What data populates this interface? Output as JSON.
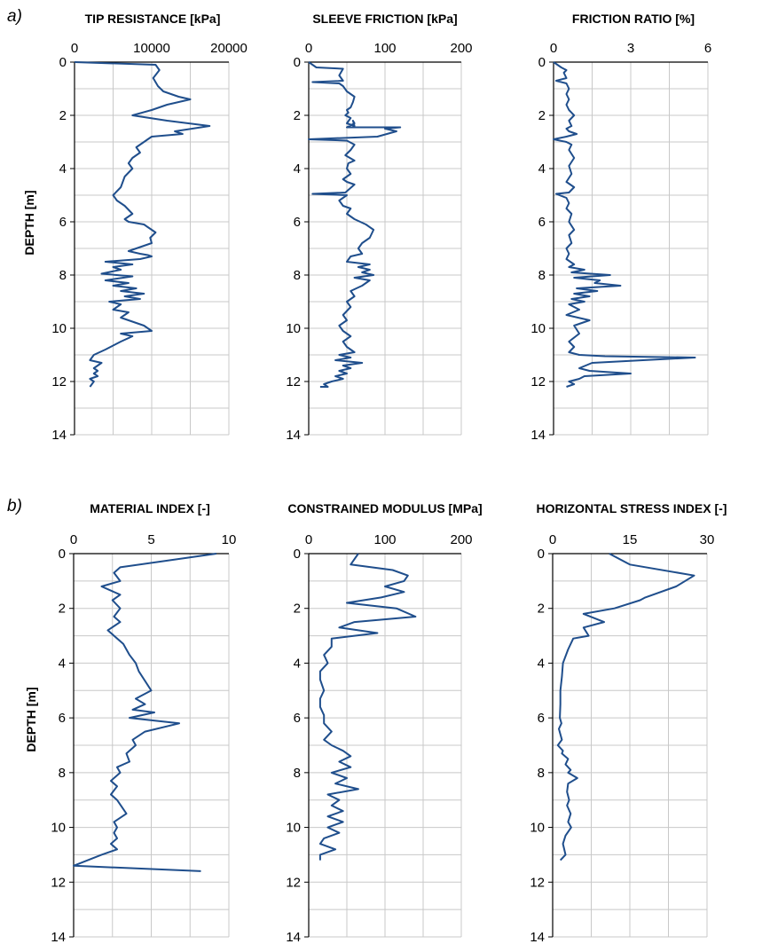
{
  "panel_labels": [
    "a)",
    "b)"
  ],
  "y_axis_label": "DEPTH [m]",
  "colors": {
    "line": "#1f4e8c",
    "grid": "#c8c8c8",
    "axis": "#000000"
  },
  "chart_data": [
    {
      "type": "line",
      "group": "a)",
      "title": "TIP RESISTANCE [kPa]",
      "xlim": [
        0,
        20000
      ],
      "xticks": [
        0,
        10000,
        20000
      ],
      "xticklabels": [
        "0",
        "10000",
        "20000"
      ],
      "ylim": [
        0,
        14
      ],
      "yticks": [
        0,
        2,
        4,
        6,
        8,
        10,
        12,
        14
      ],
      "y_inverted": true,
      "grid": true,
      "x": [
        0,
        10500,
        11000,
        10200,
        10800,
        11500,
        13500,
        15000,
        12000,
        10000,
        7500,
        12000,
        17500,
        13000,
        14000,
        10000,
        9500,
        9000,
        8000,
        8500,
        7500,
        7000,
        7500,
        6500,
        6000,
        5000,
        5500,
        6500,
        7500,
        6500,
        7000,
        9000,
        9500,
        10500,
        9800,
        10000,
        9000,
        8000,
        7000,
        8500,
        9500,
        10000,
        8500,
        4000,
        7500,
        5000,
        6000,
        3500,
        7500,
        4000,
        7000,
        5000,
        8000,
        6000,
        9000,
        6500,
        8500,
        4500,
        6000,
        5000,
        7000,
        6000,
        8000,
        9000,
        10000,
        6000,
        7500,
        6000,
        4000,
        2500,
        2000,
        3500,
        2500,
        3000,
        2500,
        3000,
        2000,
        2500,
        2000
      ],
      "y": [
        0,
        0.1,
        0.3,
        0.6,
        0.9,
        1.1,
        1.3,
        1.4,
        1.6,
        1.8,
        2.0,
        2.2,
        2.4,
        2.6,
        2.7,
        2.8,
        2.9,
        3.0,
        3.2,
        3.4,
        3.6,
        3.8,
        4.0,
        4.3,
        4.7,
        5.0,
        5.2,
        5.4,
        5.7,
        5.9,
        6.0,
        6.1,
        6.2,
        6.4,
        6.6,
        6.8,
        6.9,
        7.0,
        7.1,
        7.2,
        7.25,
        7.3,
        7.4,
        7.5,
        7.6,
        7.7,
        7.8,
        7.95,
        8.05,
        8.2,
        8.3,
        8.4,
        8.5,
        8.6,
        8.7,
        8.8,
        8.9,
        9.0,
        9.1,
        9.3,
        9.4,
        9.6,
        9.8,
        9.9,
        10.1,
        10.2,
        10.3,
        10.5,
        10.8,
        11.0,
        11.2,
        11.3,
        11.5,
        11.6,
        11.7,
        11.8,
        11.9,
        12.0,
        12.2
      ]
    },
    {
      "type": "line",
      "group": "a)",
      "title": "SLEEVE FRICTION [kPa]",
      "xlim": [
        0,
        200
      ],
      "xticks": [
        0,
        100,
        200
      ],
      "xticklabels": [
        "0",
        "100",
        "200"
      ],
      "ylim": [
        0,
        14
      ],
      "yticks": [
        0,
        2,
        4,
        6,
        8,
        10,
        12,
        14
      ],
      "y_inverted": true,
      "grid": true,
      "x": [
        0,
        10,
        45,
        40,
        45,
        5,
        40,
        45,
        50,
        55,
        60,
        58,
        55,
        50,
        52,
        48,
        55,
        50,
        60,
        58,
        60,
        50,
        120,
        100,
        115,
        90,
        0,
        50,
        60,
        55,
        48,
        60,
        52,
        50,
        55,
        45,
        50,
        60,
        48,
        5,
        50,
        40,
        45,
        55,
        50,
        60,
        75,
        85,
        80,
        70,
        65,
        70,
        55,
        50,
        80,
        65,
        80,
        70,
        85,
        60,
        80,
        70,
        55,
        60,
        50,
        55,
        45,
        50,
        40,
        45,
        55,
        45,
        50,
        60,
        40,
        55,
        35,
        70,
        45,
        55,
        40,
        50,
        35,
        45,
        30,
        20,
        25,
        15
      ],
      "y": [
        0,
        0.2,
        0.25,
        0.5,
        0.7,
        0.75,
        0.8,
        0.9,
        1.1,
        1.2,
        1.3,
        1.5,
        1.7,
        1.8,
        1.9,
        2.0,
        2.1,
        2.3,
        2.4,
        2.2,
        2.3,
        2.45,
        2.45,
        2.5,
        2.6,
        2.8,
        2.9,
        2.95,
        3.1,
        3.3,
        3.5,
        3.7,
        3.8,
        4.0,
        4.2,
        4.4,
        4.5,
        4.6,
        4.9,
        4.95,
        5.0,
        5.2,
        5.4,
        5.5,
        5.7,
        5.9,
        6.1,
        6.3,
        6.6,
        6.8,
        7.0,
        7.2,
        7.3,
        7.5,
        7.6,
        7.7,
        7.8,
        7.9,
        8.0,
        8.1,
        8.2,
        8.4,
        8.6,
        8.8,
        9.0,
        9.2,
        9.5,
        9.7,
        9.9,
        10.1,
        10.3,
        10.5,
        10.7,
        10.9,
        11.0,
        11.1,
        11.2,
        11.3,
        11.4,
        11.5,
        11.6,
        11.7,
        11.8,
        11.9,
        12.0,
        12.1,
        12.2,
        12.2
      ]
    },
    {
      "type": "line",
      "group": "a)",
      "title": "FRICTION RATIO [%]",
      "xlim": [
        0,
        6
      ],
      "xticks": [
        0,
        3,
        6
      ],
      "xticklabels": [
        "0",
        "3",
        "6"
      ],
      "ylim": [
        0,
        14
      ],
      "yticks": [
        0,
        2,
        4,
        6,
        8,
        10,
        12,
        14
      ],
      "y_inverted": true,
      "grid": true,
      "x": [
        0,
        0.3,
        0.5,
        0.4,
        0.5,
        0.1,
        0.5,
        0.6,
        0.5,
        0.6,
        0.5,
        0.6,
        0.8,
        0.6,
        0.7,
        0.5,
        0.6,
        0.9,
        0.5,
        0.0,
        0.5,
        0.7,
        0.6,
        0.8,
        0.6,
        0.7,
        0.5,
        0.8,
        0.6,
        0.1,
        0.5,
        0.6,
        0.5,
        0.7,
        0.6,
        0.8,
        0.6,
        0.7,
        0.5,
        0.6,
        0.5,
        0.8,
        0.6,
        1.2,
        0.7,
        2.2,
        0.8,
        1.8,
        1.6,
        2.6,
        0.9,
        1.7,
        0.8,
        1.4,
        0.7,
        1.2,
        0.6,
        1.0,
        0.5,
        1.4,
        0.8,
        1.0,
        0.6,
        0.8,
        0.6,
        1.0,
        2.0,
        5.5,
        1.5,
        1.0,
        1.4,
        3.0,
        1.2,
        1.0,
        0.6,
        0.8,
        0.5
      ],
      "y": [
        0,
        0.2,
        0.3,
        0.4,
        0.6,
        0.7,
        0.8,
        1.0,
        1.2,
        1.4,
        1.6,
        1.8,
        2.0,
        2.2,
        2.4,
        2.5,
        2.6,
        2.7,
        2.8,
        2.9,
        3.0,
        3.1,
        3.3,
        3.6,
        3.9,
        4.2,
        4.5,
        4.7,
        4.9,
        4.95,
        5.1,
        5.3,
        5.5,
        5.7,
        6.0,
        6.3,
        6.5,
        6.8,
        7.0,
        7.2,
        7.4,
        7.6,
        7.7,
        7.8,
        7.9,
        8.0,
        8.1,
        8.2,
        8.3,
        8.4,
        8.5,
        8.6,
        8.7,
        8.8,
        8.9,
        9.0,
        9.1,
        9.3,
        9.5,
        9.7,
        9.9,
        10.2,
        10.5,
        10.7,
        10.9,
        11.0,
        11.05,
        11.1,
        11.3,
        11.5,
        11.6,
        11.7,
        11.8,
        11.9,
        12.0,
        12.1,
        12.2
      ]
    },
    {
      "type": "line",
      "group": "b)",
      "title": "MATERIAL INDEX [-]",
      "xlim": [
        0,
        10
      ],
      "xticks": [
        0,
        5,
        10
      ],
      "xticklabels": [
        "0",
        "5",
        "10"
      ],
      "ylim": [
        0,
        14
      ],
      "yticks": [
        0,
        2,
        4,
        6,
        8,
        10,
        12,
        14
      ],
      "y_inverted": true,
      "grid": true,
      "x": [
        9.2,
        3.0,
        2.6,
        3.0,
        1.8,
        3.0,
        2.5,
        3.0,
        2.6,
        3.0,
        2.2,
        3.2,
        3.6,
        4.0,
        4.2,
        5.0,
        4.0,
        4.6,
        3.8,
        5.2,
        3.6,
        6.8,
        4.6,
        3.8,
        4.0,
        3.4,
        3.6,
        2.8,
        3.0,
        2.4,
        2.8,
        2.4,
        2.8,
        3.4,
        2.6,
        2.8,
        2.6,
        2.8,
        2.4,
        2.8,
        1.8,
        0.0,
        8.2
      ],
      "y": [
        0,
        0.5,
        0.7,
        1.0,
        1.2,
        1.5,
        1.7,
        2.0,
        2.3,
        2.5,
        2.8,
        3.3,
        3.7,
        4.0,
        4.3,
        5.0,
        5.3,
        5.5,
        5.7,
        5.8,
        6.0,
        6.2,
        6.5,
        6.8,
        7.0,
        7.3,
        7.6,
        7.8,
        8.0,
        8.3,
        8.5,
        8.8,
        9.0,
        9.5,
        9.8,
        10.0,
        10.2,
        10.4,
        10.6,
        10.8,
        11.0,
        11.4,
        11.6
      ]
    },
    {
      "type": "line",
      "group": "b)",
      "title": "CONSTRAINED MODULUS [MPa]",
      "xlim": [
        0,
        200
      ],
      "xticks": [
        0,
        100,
        200
      ],
      "xticklabels": [
        "0",
        "100",
        "200"
      ],
      "ylim": [
        0,
        14
      ],
      "yticks": [
        0,
        2,
        4,
        6,
        8,
        10,
        12,
        14
      ],
      "y_inverted": true,
      "grid": true,
      "x": [
        65,
        55,
        110,
        130,
        125,
        100,
        125,
        95,
        50,
        115,
        140,
        60,
        40,
        90,
        30,
        30,
        20,
        25,
        15,
        15,
        20,
        15,
        15,
        20,
        20,
        30,
        20,
        30,
        45,
        55,
        40,
        55,
        30,
        50,
        35,
        65,
        25,
        40,
        30,
        45,
        25,
        45,
        25,
        40,
        20,
        15,
        35,
        15,
        15
      ],
      "y": [
        0,
        0.4,
        0.6,
        0.8,
        1.0,
        1.2,
        1.4,
        1.6,
        1.8,
        2.0,
        2.3,
        2.5,
        2.7,
        2.9,
        3.1,
        3.4,
        3.7,
        4.0,
        4.3,
        4.6,
        5.0,
        5.3,
        5.6,
        5.9,
        6.2,
        6.5,
        6.8,
        7.0,
        7.2,
        7.4,
        7.6,
        7.8,
        8.0,
        8.2,
        8.4,
        8.6,
        8.8,
        9.0,
        9.2,
        9.4,
        9.6,
        9.8,
        10.0,
        10.2,
        10.4,
        10.6,
        10.8,
        11.0,
        11.2
      ]
    },
    {
      "type": "line",
      "group": "b)",
      "title": "HORIZONTAL STRESS INDEX [-]",
      "xlim": [
        0,
        30
      ],
      "xticks": [
        0,
        15,
        30
      ],
      "xticklabels": [
        "0",
        "15",
        "30"
      ],
      "ylim": [
        0,
        14
      ],
      "yticks": [
        0,
        2,
        4,
        6,
        8,
        10,
        12,
        14
      ],
      "y_inverted": true,
      "grid": true,
      "x": [
        11,
        15,
        27.5,
        24,
        18,
        17,
        12,
        6,
        10,
        6,
        7,
        4,
        3,
        2,
        1.8,
        1.5,
        1.5,
        1.4,
        1.7,
        1.2,
        1.8,
        1.0,
        2.0,
        1.8,
        3.0,
        2.5,
        3.5,
        3.0,
        4.8,
        3.0,
        2.8,
        3.2,
        2.8,
        3.5,
        3.0,
        3.6,
        2.5,
        2.0,
        2.5,
        1.5
      ],
      "y": [
        0,
        0.4,
        0.8,
        1.2,
        1.6,
        1.7,
        2.0,
        2.2,
        2.5,
        2.7,
        3.0,
        3.1,
        3.5,
        4.0,
        4.5,
        5.0,
        5.5,
        6.0,
        6.2,
        6.4,
        6.8,
        7.0,
        7.2,
        7.3,
        7.5,
        7.7,
        7.9,
        8.0,
        8.2,
        8.4,
        8.7,
        9.0,
        9.2,
        9.5,
        9.8,
        10.0,
        10.3,
        10.6,
        11.0,
        11.2
      ]
    }
  ]
}
